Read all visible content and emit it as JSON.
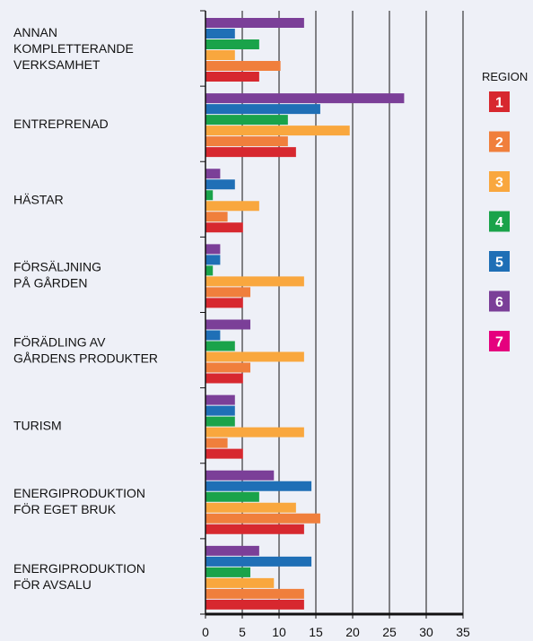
{
  "chart_data": {
    "type": "hbar",
    "categories": [
      [
        "ANNAN",
        "KOMPLETTERANDE",
        "VERKSAMHET"
      ],
      [
        "ENTREPRENAD"
      ],
      [
        "HÄSTAR"
      ],
      [
        "FÖRSÄLJNING",
        "PÅ GÅRDEN"
      ],
      [
        "FÖRÄDLING AV",
        "GÅRDENS PRODUKTER"
      ],
      [
        "TURISM"
      ],
      [
        "ENERGIPRODUKTION",
        "FÖR EGET BRUK"
      ],
      [
        "ENERGIPRODUKTION",
        "FÖR AVSALU"
      ]
    ],
    "legend_title": "REGION",
    "series": [
      {
        "name": "1",
        "color": "#d7282f",
        "values": [
          7.3,
          12.3,
          5.1,
          5.1,
          5.1,
          5.1,
          13.4,
          13.4
        ]
      },
      {
        "name": "2",
        "color": "#f07f3c",
        "values": [
          10.2,
          11.2,
          3,
          6.1,
          6.1,
          3,
          15.6,
          13.4
        ]
      },
      {
        "name": "3",
        "color": "#f9a73e",
        "values": [
          4,
          19.6,
          7.3,
          13.4,
          13.4,
          13.4,
          12.3,
          9.3
        ]
      },
      {
        "name": "4",
        "color": "#1aa34a",
        "values": [
          7.3,
          11.2,
          1,
          1,
          4,
          4,
          7.3,
          6.1
        ]
      },
      {
        "name": "5",
        "color": "#1f6fb6",
        "values": [
          4,
          15.6,
          4,
          2,
          2,
          4,
          14.4,
          14.4
        ]
      },
      {
        "name": "6",
        "color": "#7b3f98",
        "values": [
          13.4,
          27,
          2,
          2,
          6.1,
          4,
          9.3,
          7.3
        ]
      },
      {
        "name": "7",
        "color": "#e5007e",
        "values": [
          null,
          null,
          null,
          null,
          null,
          null,
          null,
          null
        ]
      }
    ],
    "xlim": [
      0,
      35
    ],
    "xticks": [
      0,
      5,
      10,
      15,
      20,
      25,
      30,
      35
    ],
    "grid": true
  }
}
